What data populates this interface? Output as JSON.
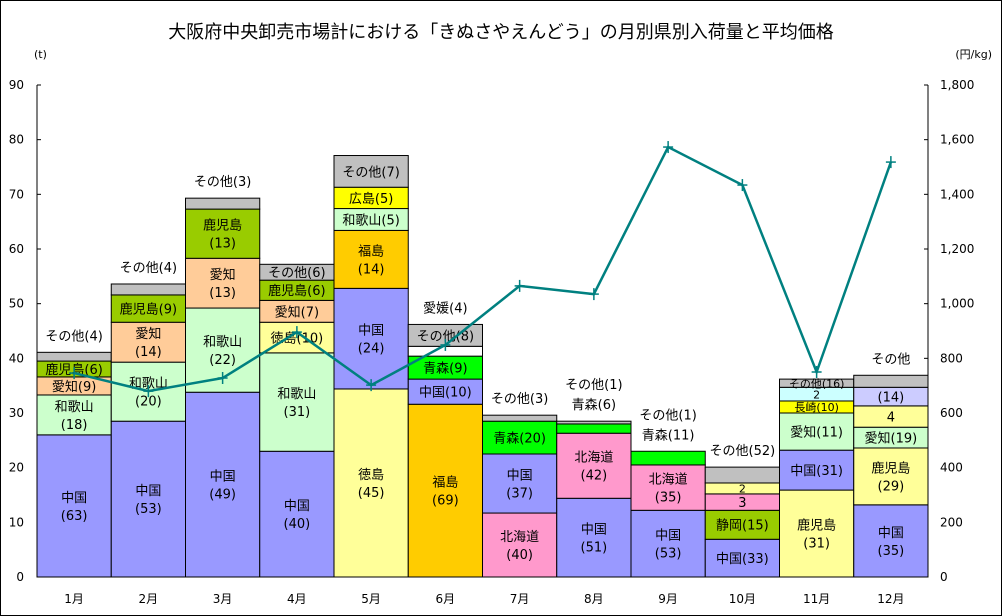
{
  "chart_data": {
    "type": "bar",
    "stacked": true,
    "title": "大阪府中央卸売市場計における「きぬさやえんどう」の月別県別入荷量と平均価格",
    "ylabel_left": "(t)",
    "ylabel_right": "(円/kg)",
    "ylim_left": [
      0,
      90
    ],
    "ylim_right": [
      0,
      1800
    ],
    "yticks_left": [
      "0",
      "10",
      "20",
      "30",
      "40",
      "50",
      "60",
      "70",
      "80",
      "90"
    ],
    "yticks_right": [
      "0",
      "200",
      "400",
      "600",
      "800",
      "1,000",
      "1,200",
      "1,400",
      "1,600",
      "1,800"
    ],
    "categories": [
      "1月",
      "2月",
      "3月",
      "4月",
      "5月",
      "6月",
      "7月",
      "8月",
      "9月",
      "10月",
      "11月",
      "12月"
    ],
    "colors": {
      "中国": "#9999ff",
      "和歌山": "#ccffcc",
      "愛知": "#ffcc99",
      "鹿児島_green": "#99cc00",
      "鹿児島_yellow": "#ffff99",
      "徳島": "#ffff99",
      "福島": "#ffcc00",
      "広島": "#ffff00",
      "青森": "#00ff00",
      "北海道": "#ff99cc",
      "静岡": "#99cc00",
      "長崎": "#ffff00",
      "light_cyan": "#ccffff",
      "lavender": "#ccccff",
      "その他": "#c0c0c0",
      "white": "#ffffff",
      "price_line": "#008080"
    },
    "months": [
      {
        "segments": [
          {
            "name": "中国",
            "value": 26.0,
            "color": "中国",
            "label": [
              "中国",
              "(63)"
            ]
          },
          {
            "name": "和歌山",
            "value": 7.3,
            "color": "和歌山",
            "label": [
              "和歌山",
              "(18)"
            ]
          },
          {
            "name": "愛知",
            "value": 3.3,
            "color": "愛知",
            "label": [
              "愛知(9)"
            ]
          },
          {
            "name": "鹿児島",
            "value": 2.9,
            "color": "鹿児島_green",
            "label": [
              "鹿児島(6)"
            ]
          },
          {
            "name": "その他",
            "value": 1.6,
            "color": "その他",
            "label": []
          }
        ],
        "outside_label": [
          "その他(4)"
        ]
      },
      {
        "segments": [
          {
            "name": "中国",
            "value": 28.5,
            "color": "中国",
            "label": [
              "中国",
              "(53)"
            ]
          },
          {
            "name": "和歌山",
            "value": 10.8,
            "color": "和歌山",
            "label": [
              "和歌山",
              "(20)"
            ]
          },
          {
            "name": "愛知",
            "value": 7.3,
            "color": "愛知",
            "label": [
              "愛知",
              "(14)"
            ]
          },
          {
            "name": "鹿児島",
            "value": 5.0,
            "color": "鹿児島_green",
            "label": [
              "鹿児島(9)"
            ]
          },
          {
            "name": "その他",
            "value": 2.0,
            "color": "その他",
            "label": []
          }
        ],
        "outside_label": [
          "その他(4)"
        ]
      },
      {
        "segments": [
          {
            "name": "中国",
            "value": 33.8,
            "color": "中国",
            "label": [
              "中国",
              "(49)"
            ]
          },
          {
            "name": "和歌山",
            "value": 15.4,
            "color": "和歌山",
            "label": [
              "和歌山",
              "(22)"
            ]
          },
          {
            "name": "愛知",
            "value": 9.1,
            "color": "愛知",
            "label": [
              "愛知",
              "(13)"
            ]
          },
          {
            "name": "鹿児島",
            "value": 9.0,
            "color": "鹿児島_green",
            "label": [
              "鹿児島",
              "(13)"
            ]
          },
          {
            "name": "その他",
            "value": 2.0,
            "color": "その他",
            "label": []
          }
        ],
        "outside_label": [
          "その他(3)"
        ]
      },
      {
        "segments": [
          {
            "name": "中国",
            "value": 23.0,
            "color": "中国",
            "label": [
              "中国",
              "(40)"
            ]
          },
          {
            "name": "和歌山",
            "value": 18.0,
            "color": "和歌山",
            "label": [
              "和歌山",
              "(31)"
            ]
          },
          {
            "name": "徳島",
            "value": 5.6,
            "color": "徳島",
            "label": [
              "徳島(10)"
            ]
          },
          {
            "name": "愛知",
            "value": 4.0,
            "color": "愛知",
            "label": [
              "愛知(7)"
            ]
          },
          {
            "name": "鹿児島",
            "value": 3.7,
            "color": "鹿児島_green",
            "label": [
              "鹿児島(6)"
            ]
          },
          {
            "name": "その他",
            "value": 2.9,
            "color": "その他",
            "label": [
              "その他(6)"
            ]
          }
        ],
        "outside_label": []
      },
      {
        "segments": [
          {
            "name": "徳島",
            "value": 34.4,
            "color": "徳島",
            "label": [
              "徳島",
              "(45)"
            ]
          },
          {
            "name": "中国",
            "value": 18.4,
            "color": "中国",
            "label": [
              "中国",
              "(24)"
            ]
          },
          {
            "name": "福島",
            "value": 10.6,
            "color": "福島",
            "label": [
              "福島",
              "(14)"
            ]
          },
          {
            "name": "和歌山",
            "value": 4.0,
            "color": "和歌山",
            "label": [
              "和歌山(5)"
            ]
          },
          {
            "name": "広島",
            "value": 3.9,
            "color": "広島",
            "label": [
              "広島(5)"
            ]
          },
          {
            "name": "その他",
            "value": 5.8,
            "color": "その他",
            "label": [
              "その他(7)"
            ]
          }
        ],
        "outside_label": []
      },
      {
        "segments": [
          {
            "name": "福島",
            "value": 31.6,
            "color": "福島",
            "label": [
              "福島",
              "(69)"
            ]
          },
          {
            "name": "中国",
            "value": 4.6,
            "color": "中国",
            "label": [
              "中国(10)"
            ]
          },
          {
            "name": "青森",
            "value": 4.2,
            "color": "青森",
            "label": [
              "青森(9)"
            ]
          },
          {
            "name": "愛媛",
            "value": 1.8,
            "color": "white",
            "label": []
          },
          {
            "name": "その他",
            "value": 4.0,
            "color": "その他",
            "label": [
              "その他(8)"
            ]
          }
        ],
        "outside_label": [
          "愛媛(4)"
        ]
      },
      {
        "segments": [
          {
            "name": "北海道",
            "value": 11.7,
            "color": "北海道",
            "label": [
              "北海道",
              "(40)"
            ]
          },
          {
            "name": "中国",
            "value": 10.8,
            "color": "中国",
            "label": [
              "中国",
              "(37)"
            ]
          },
          {
            "name": "青森",
            "value": 6.0,
            "color": "青森",
            "label": [
              "青森(20)"
            ]
          },
          {
            "name": "その他",
            "value": 1.1,
            "color": "その他",
            "label": []
          }
        ],
        "outside_label": [
          "その他(3)"
        ]
      },
      {
        "segments": [
          {
            "name": "中国",
            "value": 14.4,
            "color": "中国",
            "label": [
              "中国",
              "(51)"
            ]
          },
          {
            "name": "北海道",
            "value": 11.9,
            "color": "北海道",
            "label": [
              "北海道",
              "(42)"
            ]
          },
          {
            "name": "青森",
            "value": 1.7,
            "color": "青森",
            "label": []
          },
          {
            "name": "その他",
            "value": 0.5,
            "color": "その他",
            "label": []
          }
        ],
        "outside_label": [
          "その他(1)",
          "青森(6)"
        ]
      },
      {
        "segments": [
          {
            "name": "中国",
            "value": 12.2,
            "color": "中国",
            "label": [
              "中国",
              "(53)"
            ]
          },
          {
            "name": "北海道",
            "value": 8.3,
            "color": "北海道",
            "label": [
              "北海道",
              "(35)"
            ]
          },
          {
            "name": "青森",
            "value": 2.5,
            "color": "青森",
            "label": []
          }
        ],
        "outside_label": [
          "その他(1)",
          "青森(11)"
        ]
      },
      {
        "segments": [
          {
            "name": "中国",
            "value": 6.9,
            "color": "中国",
            "label": [
              "中国(33)"
            ]
          },
          {
            "name": "静岡",
            "value": 5.3,
            "color": "静岡",
            "label": [
              "静岡(15)"
            ]
          },
          {
            "name": "segment_3",
            "value": 3.0,
            "color": "北海道",
            "label": [
              "3"
            ]
          },
          {
            "name": "segment_2",
            "value": 2.0,
            "color": "鹿児島_yellow",
            "label": [
              "2"
            ]
          },
          {
            "name": "その他",
            "value": 2.9,
            "color": "その他",
            "label": []
          }
        ],
        "outside_label": [
          "その他(52)"
        ]
      },
      {
        "segments": [
          {
            "name": "鹿児島",
            "value": 15.9,
            "color": "鹿児島_yellow",
            "label": [
              "鹿児島",
              "(31)"
            ]
          },
          {
            "name": "中国",
            "value": 7.3,
            "color": "中国",
            "label": [
              "中国(31)"
            ]
          },
          {
            "name": "愛知",
            "value": 6.8,
            "color": "和歌山",
            "label": [
              "愛知(11)"
            ]
          },
          {
            "name": "長崎",
            "value": 2.2,
            "color": "長崎",
            "label": [
              "長崎(10)"
            ]
          },
          {
            "name": "segment_2",
            "value": 2.5,
            "color": "light_cyan",
            "label": [
              "2"
            ]
          },
          {
            "name": "その他",
            "value": 1.5,
            "color": "その他",
            "label": [
              "その他(16)"
            ]
          }
        ],
        "outside_label": []
      },
      {
        "segments": [
          {
            "name": "中国",
            "value": 13.2,
            "color": "中国",
            "label": [
              "中国",
              "(35)"
            ]
          },
          {
            "name": "鹿児島",
            "value": 10.4,
            "color": "鹿児島_yellow",
            "label": [
              "鹿児島",
              "(29)"
            ]
          },
          {
            "name": "愛知",
            "value": 3.8,
            "color": "和歌山",
            "label": [
              "愛知(19)"
            ]
          },
          {
            "name": "segment_4",
            "value": 3.9,
            "color": "鹿児島_yellow",
            "label": [
              "4"
            ]
          },
          {
            "name": "segment_14",
            "value": 3.4,
            "color": "lavender",
            "label": [
              "(14)"
            ]
          },
          {
            "name": "その他",
            "value": 2.2,
            "color": "その他",
            "label": []
          }
        ],
        "outside_label": [
          "その他"
        ]
      }
    ],
    "price_series": {
      "name": "平均価格",
      "values": [
        746,
        680,
        728,
        896,
        702,
        849,
        1065,
        1035,
        1573,
        1434,
        750,
        1518
      ]
    }
  }
}
